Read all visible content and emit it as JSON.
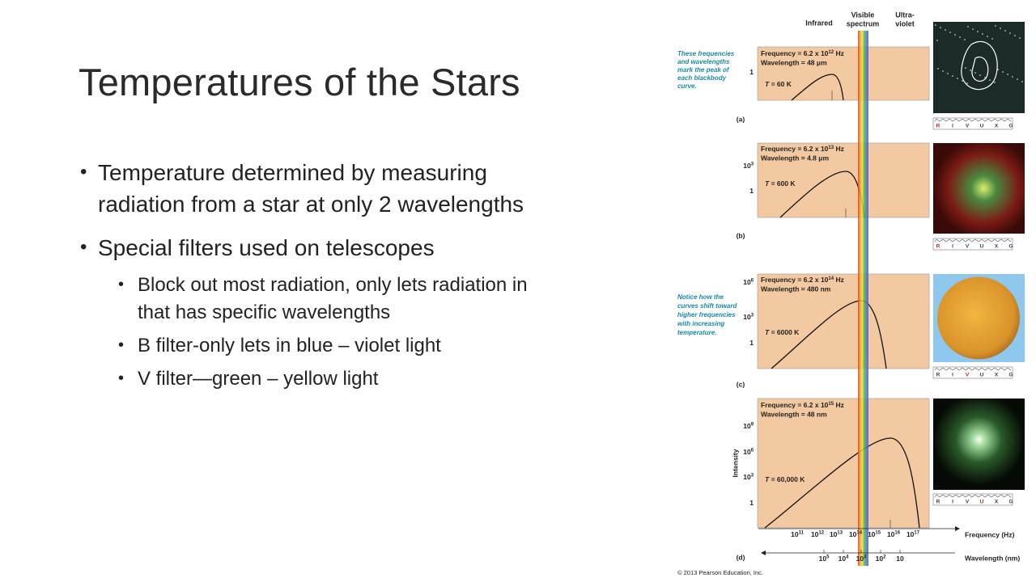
{
  "slide": {
    "title": "Temperatures of the Stars",
    "bullets": [
      {
        "lines": [
          "Temperature determined by measuring",
          "radiation from a star at only 2 wavelengths"
        ]
      },
      {
        "lines": [
          "Special filters used on telescopes"
        ],
        "sub": [
          {
            "lines": [
              "Block out most radiation, only lets radiation in",
              "that has specific wavelengths"
            ]
          },
          {
            "lines": [
              "B filter-only lets in blue – violet light"
            ]
          },
          {
            "lines": [
              "V filter—green – yellow light"
            ]
          }
        ]
      }
    ]
  },
  "figure": {
    "header": {
      "infrared": "Infrared",
      "visible": [
        "Visible",
        "spectrum"
      ],
      "ultraviolet": [
        "Ultra-",
        "violet"
      ]
    },
    "note_peak": [
      "These frequencies",
      "and wavelengths",
      "mark the peak of",
      "each blackbody",
      "curve."
    ],
    "note_shift": [
      "Notice how the",
      "curves shift toward",
      "higher frequencies",
      "with increasing",
      "temperature."
    ],
    "filter_letters": [
      "R",
      "I",
      "V",
      "U",
      "X",
      "G"
    ],
    "panels": [
      {
        "label": "(a)",
        "frequency": {
          "prefix": "Frequency  = 6.2 x 10",
          "exp": "12",
          "unit": " Hz"
        },
        "wavelength": "Wavelength = 48 μm",
        "temperature": {
          "symbol": "T",
          "value": " = 60 K"
        },
        "yticks": [
          {
            "base": "1"
          }
        ]
      },
      {
        "label": "(b)",
        "frequency": {
          "prefix": "Frequency  = 6.2 x 10",
          "exp": "13",
          "unit": " Hz"
        },
        "wavelength": "Wavelength = 4.8 μm",
        "temperature": {
          "symbol": "T",
          "value": " = 600 K"
        },
        "yticks": [
          {
            "base": "10",
            "exp": "3"
          },
          {
            "base": "1"
          }
        ]
      },
      {
        "label": "(c)",
        "frequency": {
          "prefix": "Frequency  = 6.2 x 10",
          "exp": "14",
          "unit": " Hz"
        },
        "wavelength": "Wavelength = 480 nm",
        "temperature": {
          "symbol": "T",
          "value": " = 6000 K"
        },
        "yticks": [
          {
            "base": "10",
            "exp": "6"
          },
          {
            "base": "10",
            "exp": "3"
          },
          {
            "base": "1"
          }
        ]
      },
      {
        "label": "(d)",
        "frequency": {
          "prefix": "Frequency  = 6.2 x 10",
          "exp": "15",
          "unit": " Hz"
        },
        "wavelength": "Wavelength = 48 nm",
        "temperature": {
          "symbol": "T",
          "value": " = 60,000 K"
        },
        "yticks": [
          {
            "base": "10",
            "exp": "9"
          },
          {
            "base": "10",
            "exp": "6"
          },
          {
            "base": "10",
            "exp": "3"
          },
          {
            "base": "1"
          }
        ]
      }
    ],
    "intensity_label": "Intensity",
    "frequency_axis": {
      "label": "Frequency (Hz)",
      "ticks": [
        {
          "base": "10",
          "exp": "11"
        },
        {
          "base": "10",
          "exp": "12"
        },
        {
          "base": "10",
          "exp": "13"
        },
        {
          "base": "10",
          "exp": "14"
        },
        {
          "base": "10",
          "exp": "15"
        },
        {
          "base": "10",
          "exp": "16"
        },
        {
          "base": "10",
          "exp": "17"
        }
      ]
    },
    "wavelength_axis": {
      "label": "Wavelength (nm)",
      "ticks": [
        {
          "base": "10",
          "exp": "5"
        },
        {
          "base": "10",
          "exp": "4"
        },
        {
          "base": "10",
          "exp": "3"
        },
        {
          "base": "10",
          "exp": "2"
        },
        {
          "base": "10"
        }
      ]
    },
    "copyright": "© 2013 Pearson Education, Inc."
  }
}
